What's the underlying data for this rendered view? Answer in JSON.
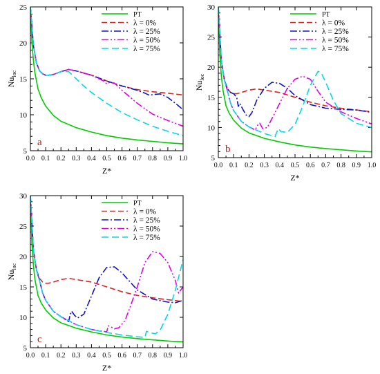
{
  "chart_data": [
    {
      "type": "line",
      "panel_label": "a",
      "xlabel": "Z*",
      "ylabel": "Nu",
      "ylabel_sub": "loc",
      "xlim": [
        0.0,
        1.0
      ],
      "ylim": [
        5,
        25
      ],
      "xticks": [
        "0.0",
        "0.1",
        "0.2",
        "0.3",
        "0.4",
        "0.5",
        "0.6",
        "0.7",
        "0.8",
        "0.9",
        "1.0"
      ],
      "yticks": [
        "5",
        "10",
        "15",
        "20",
        "25"
      ],
      "legend_position": "top-right",
      "series": [
        {
          "name": "PT",
          "color": "#00cc00",
          "dash": "solid",
          "x": [
            0.0,
            0.01,
            0.02,
            0.03,
            0.05,
            0.07,
            0.1,
            0.15,
            0.2,
            0.3,
            0.4,
            0.5,
            0.6,
            0.7,
            0.8,
            0.9,
            1.0
          ],
          "y": [
            25.0,
            20.0,
            17.5,
            15.8,
            13.6,
            12.4,
            11.2,
            9.9,
            9.1,
            8.2,
            7.6,
            7.1,
            6.75,
            6.5,
            6.3,
            6.1,
            5.95
          ]
        },
        {
          "name": "λ = 0%",
          "color": "#e02020",
          "dash": "8,4",
          "x": [
            0.0,
            0.02,
            0.04,
            0.06,
            0.08,
            0.1,
            0.12,
            0.15,
            0.2,
            0.25,
            0.3,
            0.4,
            0.5,
            0.6,
            0.7,
            0.8,
            0.9,
            1.0
          ],
          "y": [
            25.0,
            19.6,
            17.2,
            16.1,
            15.7,
            15.5,
            15.5,
            15.6,
            16.0,
            16.3,
            16.1,
            15.5,
            14.7,
            14.0,
            13.5,
            13.2,
            13.0,
            12.75
          ]
        },
        {
          "name": "λ = 25%",
          "color": "#1010c0",
          "dash": "10,3,2,3",
          "x": [
            0.0,
            0.02,
            0.04,
            0.06,
            0.08,
            0.1,
            0.12,
            0.15,
            0.2,
            0.25,
            0.3,
            0.4,
            0.5,
            0.6,
            0.7,
            0.75,
            0.78,
            0.8,
            0.85,
            0.9,
            0.95,
            1.0
          ],
          "y": [
            25.0,
            19.6,
            17.2,
            16.1,
            15.7,
            15.5,
            15.5,
            15.6,
            16.0,
            16.3,
            16.1,
            15.5,
            14.7,
            14.0,
            13.4,
            13.0,
            12.7,
            12.8,
            12.9,
            12.4,
            11.6,
            10.7
          ]
        },
        {
          "name": "λ = 50%",
          "color": "#e000e0",
          "dash": "10,3,2,3,2,3",
          "x": [
            0.0,
            0.02,
            0.04,
            0.06,
            0.08,
            0.1,
            0.12,
            0.15,
            0.2,
            0.25,
            0.3,
            0.4,
            0.48,
            0.5,
            0.52,
            0.55,
            0.6,
            0.7,
            0.8,
            0.9,
            1.0
          ],
          "y": [
            25.0,
            19.6,
            17.2,
            16.1,
            15.7,
            15.5,
            15.5,
            15.6,
            16.0,
            16.3,
            16.1,
            15.5,
            14.7,
            14.3,
            14.5,
            14.4,
            13.4,
            11.6,
            10.1,
            9.2,
            8.4
          ]
        },
        {
          "name": "λ = 75%",
          "color": "#00d8e8",
          "dash": "10,5",
          "x": [
            0.0,
            0.02,
            0.04,
            0.06,
            0.08,
            0.1,
            0.12,
            0.15,
            0.2,
            0.25,
            0.3,
            0.35,
            0.4,
            0.5,
            0.6,
            0.7,
            0.8,
            0.9,
            1.0
          ],
          "y": [
            25.0,
            19.6,
            17.2,
            16.1,
            15.7,
            15.5,
            15.5,
            15.6,
            16.0,
            16.0,
            15.0,
            14.0,
            13.1,
            11.6,
            10.3,
            9.3,
            8.4,
            7.7,
            7.1
          ]
        }
      ]
    },
    {
      "type": "line",
      "panel_label": "b",
      "xlabel": "Z*",
      "ylabel": "Nu",
      "ylabel_sub": "loc",
      "xlim": [
        0.0,
        1.0
      ],
      "ylim": [
        5,
        30
      ],
      "xticks": [
        "0.0",
        "0.1",
        "0.2",
        "0.3",
        "0.4",
        "0.5",
        "0.6",
        "0.7",
        "0.8",
        "0.9",
        "1.0"
      ],
      "yticks": [
        "5",
        "10",
        "15",
        "20",
        "25",
        "30"
      ],
      "legend_position": "top-right",
      "series": [
        {
          "name": "PT",
          "color": "#00cc00",
          "dash": "solid",
          "x": [
            0.0,
            0.01,
            0.02,
            0.03,
            0.05,
            0.07,
            0.1,
            0.15,
            0.2,
            0.3,
            0.4,
            0.5,
            0.6,
            0.7,
            0.8,
            0.9,
            1.0
          ],
          "y": [
            30.0,
            22.0,
            18.5,
            16.2,
            13.6,
            12.4,
            11.2,
            9.9,
            9.1,
            8.2,
            7.6,
            7.1,
            6.75,
            6.5,
            6.3,
            6.1,
            5.95
          ]
        },
        {
          "name": "λ = 0%",
          "color": "#e02020",
          "dash": "8,4",
          "x": [
            0.0,
            0.02,
            0.04,
            0.06,
            0.08,
            0.1,
            0.12,
            0.15,
            0.2,
            0.25,
            0.3,
            0.4,
            0.5,
            0.6,
            0.7,
            0.8,
            0.9,
            1.0
          ],
          "y": [
            30.0,
            21.0,
            17.8,
            16.4,
            15.8,
            15.6,
            15.6,
            15.8,
            16.2,
            16.4,
            16.2,
            15.8,
            15.0,
            14.2,
            13.6,
            13.2,
            12.9,
            12.6
          ]
        },
        {
          "name": "λ = 25%",
          "color": "#1010c0",
          "dash": "10,3,2,3",
          "x": [
            0.0,
            0.02,
            0.04,
            0.06,
            0.08,
            0.1,
            0.12,
            0.13,
            0.14,
            0.16,
            0.18,
            0.2,
            0.22,
            0.25,
            0.3,
            0.35,
            0.4,
            0.45,
            0.5,
            0.6,
            0.7,
            0.8,
            0.9,
            1.0
          ],
          "y": [
            30.0,
            21.0,
            17.8,
            16.4,
            15.8,
            15.6,
            15.0,
            13.5,
            14.0,
            13.0,
            12.1,
            11.8,
            12.5,
            14.5,
            16.5,
            17.5,
            17.3,
            16.5,
            15.3,
            13.8,
            13.2,
            13.0,
            12.9,
            12.5
          ]
        },
        {
          "name": "λ = 50%",
          "color": "#e000e0",
          "dash": "10,3,2,3,2,3",
          "x": [
            0.0,
            0.02,
            0.04,
            0.06,
            0.08,
            0.1,
            0.15,
            0.2,
            0.24,
            0.26,
            0.27,
            0.29,
            0.32,
            0.35,
            0.4,
            0.45,
            0.5,
            0.55,
            0.6,
            0.65,
            0.7,
            0.8,
            0.9,
            1.0
          ],
          "y": [
            30.0,
            21.0,
            17.8,
            16.0,
            14.0,
            12.8,
            11.0,
            10.1,
            9.6,
            10.5,
            10.7,
            9.8,
            10.0,
            11.5,
            14.0,
            16.5,
            18.0,
            18.5,
            18.0,
            16.0,
            14.2,
            12.6,
            11.5,
            10.6
          ]
        },
        {
          "name": "λ = 75%",
          "color": "#00d8e8",
          "dash": "10,5",
          "x": [
            0.0,
            0.02,
            0.04,
            0.06,
            0.08,
            0.1,
            0.15,
            0.2,
            0.3,
            0.37,
            0.39,
            0.41,
            0.45,
            0.5,
            0.55,
            0.6,
            0.65,
            0.67,
            0.7,
            0.75,
            0.8,
            0.9,
            1.0
          ],
          "y": [
            30.0,
            21.0,
            17.8,
            16.0,
            14.0,
            12.8,
            11.0,
            10.1,
            9.0,
            8.5,
            9.8,
            9.3,
            9.2,
            10.5,
            13.5,
            17.0,
            19.3,
            19.1,
            17.5,
            14.5,
            12.3,
            10.7,
            10.0
          ]
        }
      ]
    },
    {
      "type": "line",
      "panel_label": "c",
      "xlabel": "Z*",
      "ylabel": "Nu",
      "ylabel_sub": "loc",
      "xlim": [
        0.0,
        1.0
      ],
      "ylim": [
        5,
        30
      ],
      "xticks": [
        "0.0",
        "0.1",
        "0.2",
        "0.3",
        "0.4",
        "0.5",
        "0.6",
        "0.7",
        "0.8",
        "0.9",
        "1.0"
      ],
      "yticks": [
        "5",
        "10",
        "15",
        "20",
        "25",
        "30"
      ],
      "legend_position": "top-right",
      "series": [
        {
          "name": "PT",
          "color": "#00cc00",
          "dash": "solid",
          "x": [
            0.0,
            0.01,
            0.02,
            0.03,
            0.05,
            0.07,
            0.1,
            0.15,
            0.2,
            0.3,
            0.4,
            0.5,
            0.6,
            0.7,
            0.8,
            0.9,
            1.0
          ],
          "y": [
            30.0,
            22.0,
            18.5,
            16.2,
            13.6,
            12.4,
            11.2,
            9.9,
            9.1,
            8.2,
            7.6,
            7.1,
            6.75,
            6.5,
            6.3,
            6.1,
            5.95
          ]
        },
        {
          "name": "λ = 0%",
          "color": "#e02020",
          "dash": "8,4",
          "x": [
            0.0,
            0.02,
            0.04,
            0.06,
            0.08,
            0.1,
            0.12,
            0.15,
            0.2,
            0.25,
            0.3,
            0.4,
            0.5,
            0.6,
            0.7,
            0.8,
            0.9,
            1.0
          ],
          "y": [
            30.0,
            21.0,
            17.8,
            16.4,
            15.8,
            15.6,
            15.6,
            15.8,
            16.2,
            16.4,
            16.2,
            15.8,
            15.0,
            14.2,
            13.6,
            13.2,
            12.9,
            12.6
          ]
        },
        {
          "name": "λ = 25%",
          "color": "#1010c0",
          "dash": "10,3,2,3",
          "x": [
            0.0,
            0.02,
            0.04,
            0.06,
            0.08,
            0.1,
            0.15,
            0.2,
            0.25,
            0.26,
            0.27,
            0.29,
            0.31,
            0.35,
            0.4,
            0.45,
            0.5,
            0.55,
            0.6,
            0.7,
            0.8,
            0.9,
            0.95,
            1.0
          ],
          "y": [
            30.0,
            21.0,
            17.8,
            16.0,
            14.0,
            12.8,
            11.0,
            10.1,
            9.3,
            10.4,
            11.0,
            10.3,
            9.9,
            10.5,
            13.5,
            16.5,
            18.2,
            18.3,
            17.3,
            14.5,
            13.0,
            12.5,
            12.4,
            12.8
          ]
        },
        {
          "name": "λ = 50%",
          "color": "#e000e0",
          "dash": "10,3,2,3,2,3",
          "x": [
            0.0,
            0.02,
            0.04,
            0.06,
            0.08,
            0.1,
            0.15,
            0.2,
            0.3,
            0.4,
            0.5,
            0.51,
            0.53,
            0.55,
            0.58,
            0.62,
            0.65,
            0.7,
            0.75,
            0.8,
            0.85,
            0.9,
            0.95,
            0.97,
            1.0
          ],
          "y": [
            30.0,
            21.0,
            17.8,
            16.0,
            14.0,
            12.8,
            11.0,
            10.1,
            8.8,
            8.0,
            7.6,
            8.6,
            8.4,
            8.1,
            8.3,
            9.5,
            11.5,
            15.0,
            19.0,
            20.8,
            20.5,
            19.0,
            16.0,
            14.0,
            15.0
          ]
        },
        {
          "name": "λ = 75%",
          "color": "#00d8e8",
          "dash": "10,5",
          "x": [
            0.0,
            0.02,
            0.04,
            0.06,
            0.08,
            0.1,
            0.15,
            0.2,
            0.3,
            0.4,
            0.5,
            0.6,
            0.7,
            0.75,
            0.76,
            0.78,
            0.82,
            0.85,
            0.9,
            0.95,
            1.0
          ],
          "y": [
            30.0,
            21.0,
            17.8,
            16.0,
            14.0,
            12.8,
            11.0,
            10.1,
            8.8,
            8.0,
            7.5,
            7.1,
            6.8,
            6.7,
            7.7,
            7.5,
            7.3,
            7.9,
            10.5,
            14.5,
            19.5
          ]
        }
      ]
    }
  ]
}
